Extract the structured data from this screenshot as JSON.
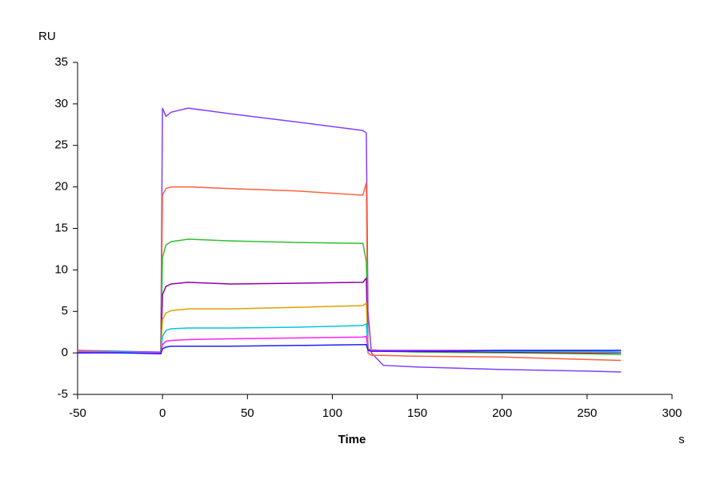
{
  "chart_data": {
    "type": "line",
    "y_unit": "RU",
    "x_label": "Time",
    "x_unit": "s",
    "x": [
      -50,
      -25,
      -1,
      0,
      2,
      5,
      15,
      40,
      80,
      118,
      120,
      121,
      123,
      130,
      150,
      200,
      250,
      270
    ],
    "series": [
      {
        "color": "#8040ff",
        "values": [
          0.3,
          0.2,
          0.1,
          29.5,
          28.5,
          29,
          29.5,
          28.8,
          27.8,
          26.8,
          26.5,
          5,
          0,
          -1.5,
          -1.7,
          -2,
          -2.2,
          -2.3
        ]
      },
      {
        "color": "#ff6040",
        "values": [
          0.2,
          0.1,
          0,
          19,
          19.8,
          20,
          20,
          19.8,
          19.5,
          19,
          20.5,
          0,
          -0.3,
          -0.3,
          -0.4,
          -0.5,
          -0.8,
          -0.9
        ]
      },
      {
        "color": "#30c030",
        "values": [
          0.1,
          0.1,
          0,
          11.5,
          13,
          13.4,
          13.7,
          13.5,
          13.3,
          13.2,
          11,
          0.5,
          0.3,
          0.2,
          0.1,
          0,
          -0.1,
          -0.2
        ]
      },
      {
        "color": "#9000a0",
        "values": [
          0,
          0.1,
          0,
          7,
          8,
          8.3,
          8.5,
          8.3,
          8.4,
          8.5,
          9,
          0.5,
          0.3,
          0.3,
          0.2,
          0.1,
          0,
          0
        ]
      },
      {
        "color": "#e0a000",
        "values": [
          0.2,
          0.1,
          0,
          4,
          4.8,
          5.1,
          5.3,
          5.3,
          5.5,
          5.7,
          6,
          0.5,
          0.4,
          0.3,
          0.3,
          0.2,
          0.1,
          0.1
        ]
      },
      {
        "color": "#00c8e0",
        "values": [
          0.1,
          0.1,
          0,
          2,
          2.7,
          2.9,
          3,
          3,
          3.1,
          3.3,
          3.5,
          0.4,
          0.3,
          0.3,
          0.3,
          0.2,
          0.2,
          0.1
        ]
      },
      {
        "color": "#ff20ff",
        "values": [
          0.1,
          0,
          0,
          1,
          1.4,
          1.5,
          1.6,
          1.7,
          1.8,
          1.9,
          2,
          0.4,
          0.3,
          0.3,
          0.3,
          0.3,
          0.3,
          0.3
        ]
      },
      {
        "color": "#2020ff",
        "values": [
          0,
          0,
          -0.1,
          0.5,
          0.7,
          0.8,
          0.8,
          0.8,
          0.9,
          1,
          1,
          0.3,
          0.2,
          0.2,
          0.2,
          0.3,
          0.3,
          0.3
        ]
      }
    ],
    "xlim": [
      -50,
      300
    ],
    "xticks": [
      -50,
      0,
      50,
      100,
      150,
      200,
      250,
      300
    ],
    "ylim": [
      -5,
      35
    ],
    "yticks": [
      -5,
      0,
      5,
      10,
      15,
      20,
      25,
      30,
      35
    ],
    "grid": false
  }
}
